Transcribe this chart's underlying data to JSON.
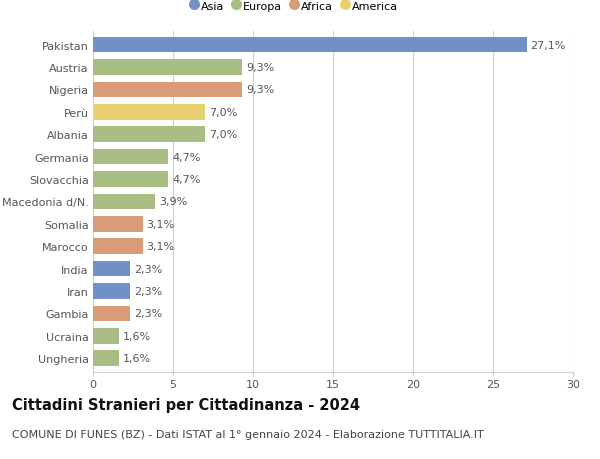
{
  "categories": [
    "Pakistan",
    "Austria",
    "Nigeria",
    "Perù",
    "Albania",
    "Germania",
    "Slovacchia",
    "Macedonia d/N.",
    "Somalia",
    "Marocco",
    "India",
    "Iran",
    "Gambia",
    "Ucraina",
    "Ungheria"
  ],
  "values": [
    27.1,
    9.3,
    9.3,
    7.0,
    7.0,
    4.7,
    4.7,
    3.9,
    3.1,
    3.1,
    2.3,
    2.3,
    2.3,
    1.6,
    1.6
  ],
  "continents": [
    "Asia",
    "Europa",
    "Africa",
    "America",
    "Europa",
    "Europa",
    "Europa",
    "Europa",
    "Africa",
    "Africa",
    "Asia",
    "Asia",
    "Africa",
    "Europa",
    "Europa"
  ],
  "colors": {
    "Asia": "#7090c8",
    "Europa": "#a8bc84",
    "Africa": "#d89c78",
    "America": "#e8d070"
  },
  "legend_order": [
    "Asia",
    "Europa",
    "Africa",
    "America"
  ],
  "title": "Cittadini Stranieri per Cittadinanza - 2024",
  "subtitle": "COMUNE DI FUNES (BZ) - Dati ISTAT al 1° gennaio 2024 - Elaborazione TUTTITALIA.IT",
  "xlim": [
    0,
    30
  ],
  "xticks": [
    0,
    5,
    10,
    15,
    20,
    25,
    30
  ],
  "background_color": "#ffffff",
  "grid_color": "#d0d0d0",
  "label_fontsize": 8,
  "tick_fontsize": 8,
  "title_fontsize": 10.5,
  "subtitle_fontsize": 8,
  "bar_height": 0.7
}
